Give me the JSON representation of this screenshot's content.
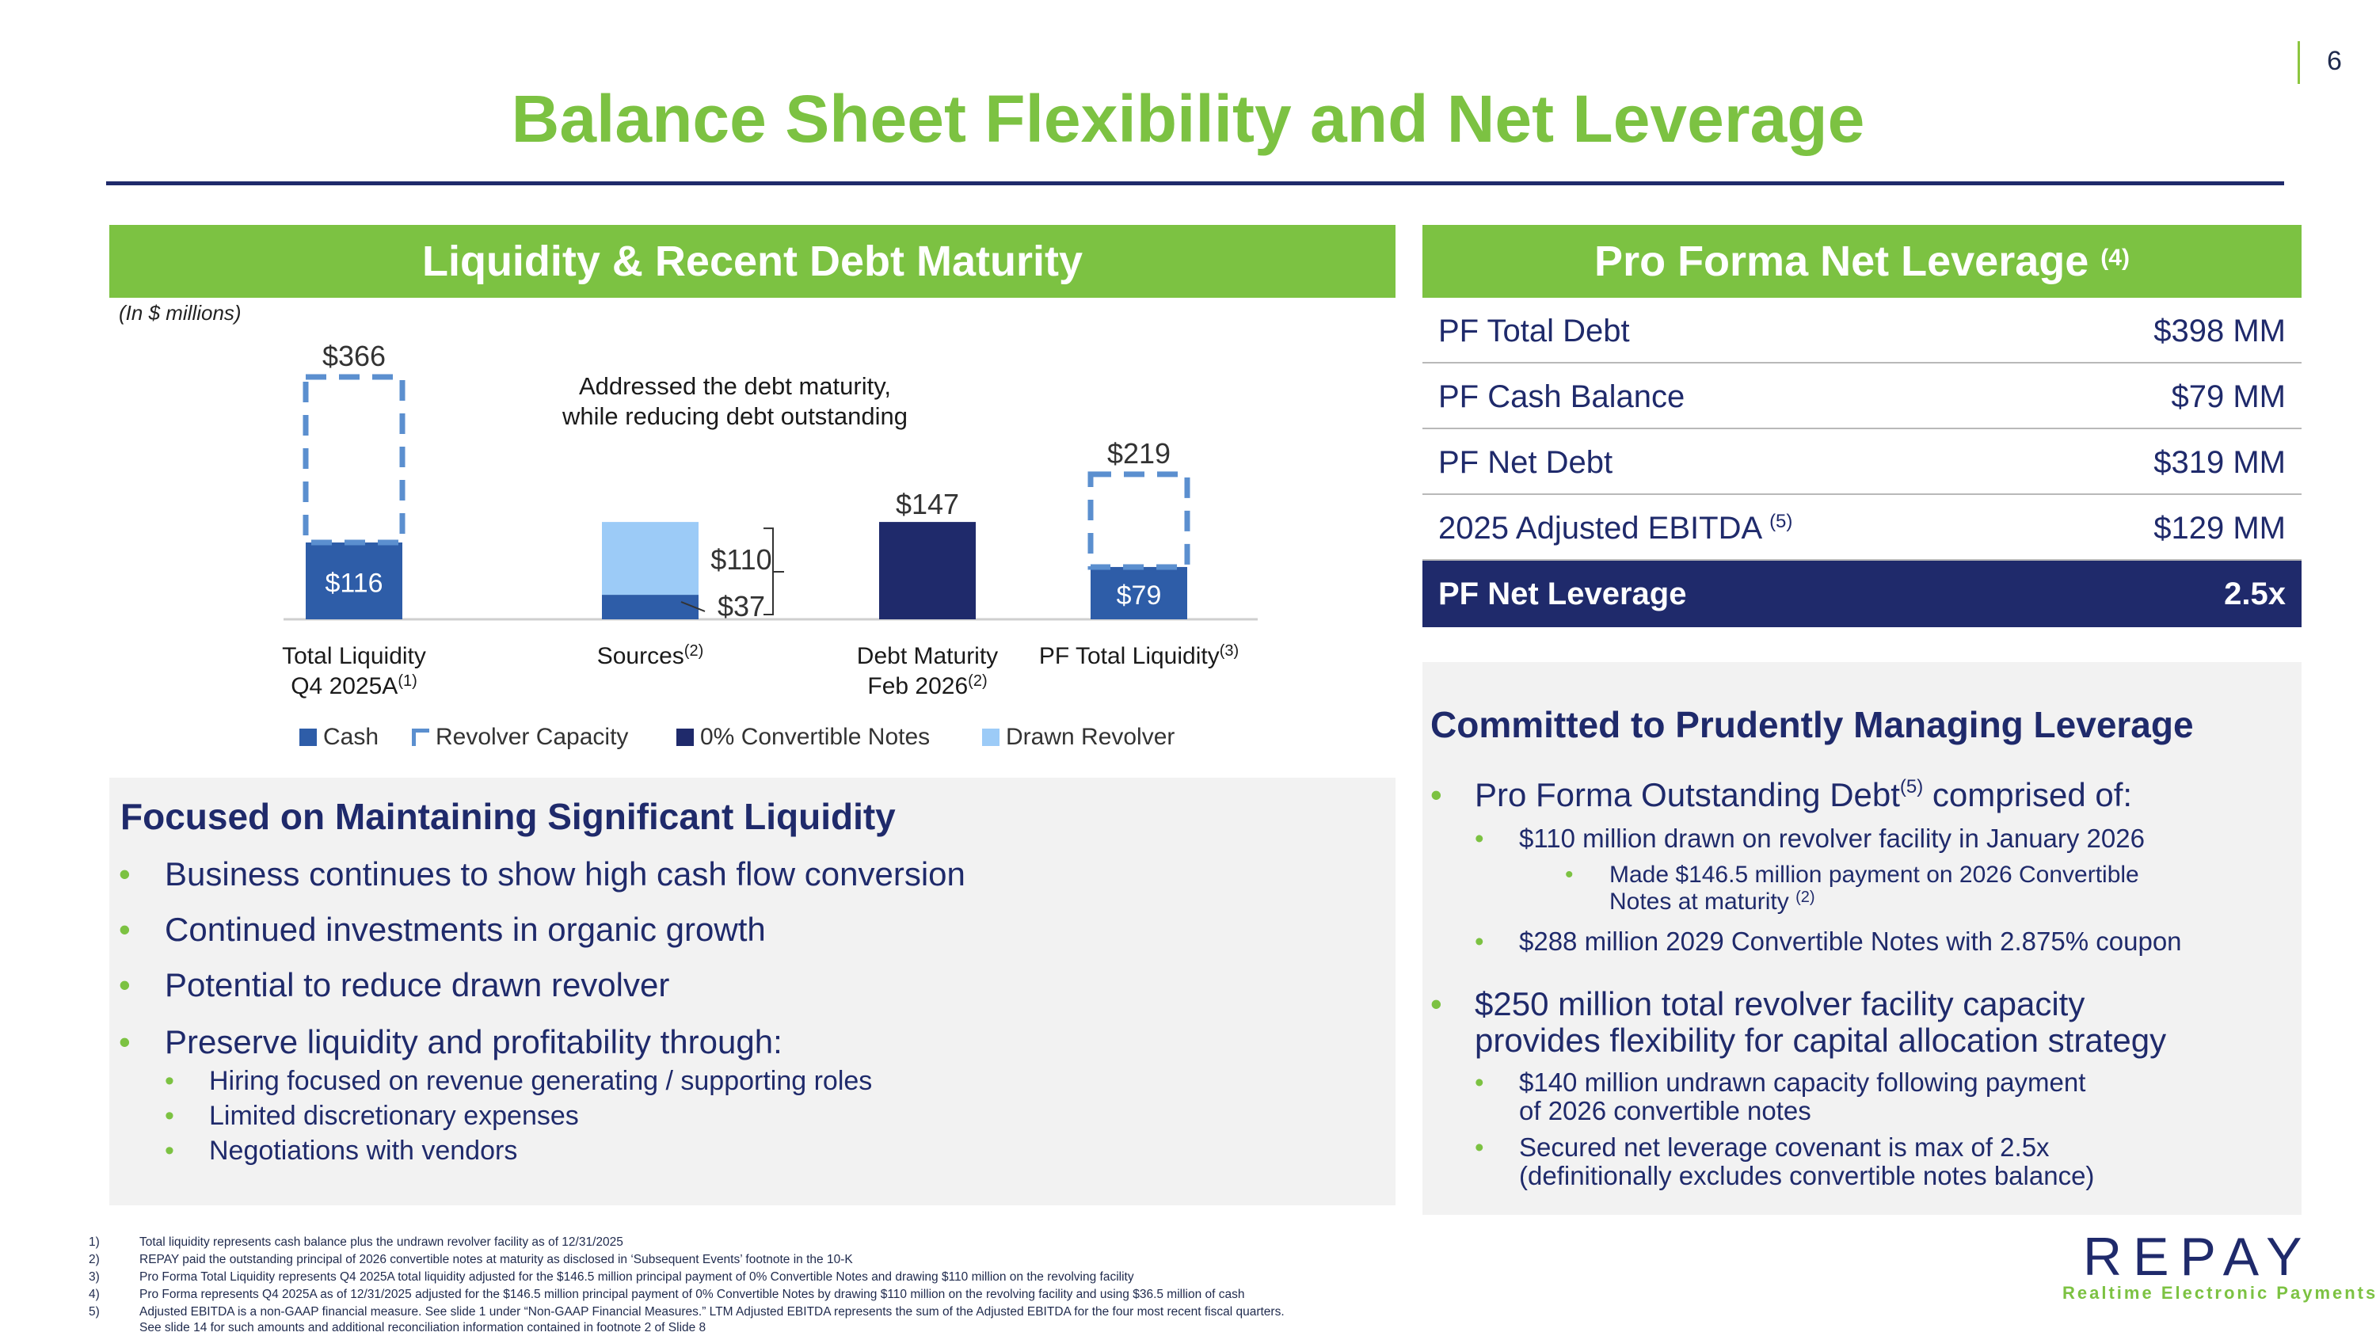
{
  "page_number": "6",
  "title": "Balance Sheet Flexibility and Net Leverage",
  "left_panel": {
    "header": "Liquidity & Recent Debt Maturity",
    "units_note": "(In $ millions)",
    "chart_annotation_line1": "Addressed the debt maturity,",
    "chart_annotation_line2": "while reducing debt outstanding"
  },
  "chart_data": {
    "type": "bar",
    "categories": [
      "Total Liquidity Q4 2025A",
      "Sources",
      "Debt Maturity Feb 2026",
      "PF Total Liquidity"
    ],
    "category_labels": [
      {
        "line1": "Total Liquidity",
        "line2": "Q4 2025A",
        "footnote": "(1)"
      },
      {
        "line1": "Sources",
        "line2": "",
        "footnote": "(2)"
      },
      {
        "line1": "Debt Maturity",
        "line2": "Feb 2026",
        "footnote": "(2)"
      },
      {
        "line1": "PF Total Liquidity",
        "line2": "",
        "footnote": "(3)"
      }
    ],
    "series": [
      {
        "name": "Cash",
        "values": [
          116,
          37,
          null,
          79
        ],
        "color": "#2e5da8"
      },
      {
        "name": "Revolver Capacity",
        "values": [
          250,
          null,
          null,
          140
        ],
        "color": "#5b8fcf"
      },
      {
        "name": "0% Convertible Notes",
        "values": [
          null,
          null,
          147,
          null
        ],
        "color": "#1f2a6b"
      },
      {
        "name": "Drawn Revolver",
        "values": [
          null,
          110,
          null,
          null
        ],
        "color": "#9ccbf7"
      }
    ],
    "data_labels": {
      "total_liquidity_total": "$366",
      "total_liquidity_cash": "$116",
      "sources_revolver": "$110",
      "sources_cash": "$37",
      "debt_maturity": "$147",
      "pf_total": "$219",
      "pf_cash": "$79"
    },
    "ylim": [
      0,
      366
    ],
    "legend_position": "bottom",
    "grid": false
  },
  "focus_box": {
    "title": "Focused on Maintaining Significant Liquidity",
    "bullets": [
      "Business continues to show high cash flow conversion",
      "Continued investments in organic growth",
      "Potential to reduce drawn revolver",
      "Preserve liquidity and profitability through:"
    ],
    "sub_bullets": [
      "Hiring focused on revenue generating / supporting roles",
      "Limited discretionary expenses",
      "Negotiations with vendors"
    ]
  },
  "right_panel": {
    "header": "Pro Forma Net Leverage",
    "header_footnote": "(4)",
    "table": [
      {
        "label": "PF Total Debt",
        "footnote": "",
        "value": "$398 MM"
      },
      {
        "label": "PF Cash Balance",
        "footnote": "",
        "value": "$79 MM"
      },
      {
        "label": "PF Net Debt",
        "footnote": "",
        "value": "$319 MM"
      },
      {
        "label": "2025 Adjusted EBITDA",
        "footnote": "(5)",
        "value": "$129 MM"
      },
      {
        "label": "PF Net Leverage",
        "footnote": "",
        "value": "2.5x"
      }
    ]
  },
  "committed_box": {
    "title": "Committed to Prudently Managing Leverage",
    "b1_pre": "Pro Forma Outstanding Debt",
    "b1_sup": "(5)",
    "b1_post": " comprised of:",
    "b1_sub1": "$110 million drawn on revolver facility in January 2026",
    "b1_subsub_line1": "Made $146.5 million payment on 2026 Convertible",
    "b1_subsub_line2": "Notes at maturity",
    "b1_subsub_sup": "(2)",
    "b1_sub2": "$288 million 2029 Convertible Notes with 2.875% coupon",
    "b2_line1": "$250 million total revolver facility capacity",
    "b2_line2": "provides flexibility for capital allocation strategy",
    "b2_sub1_line1": "$140 million undrawn capacity following payment",
    "b2_sub1_line2": "of 2026 convertible notes",
    "b2_sub2_line1": "Secured net leverage covenant is max of 2.5x",
    "b2_sub2_line2": "(definitionally excludes convertible notes balance)"
  },
  "footnotes": [
    {
      "n": "1)",
      "text": "Total liquidity represents cash balance plus the undrawn revolver facility as of 12/31/2025"
    },
    {
      "n": "2)",
      "text": "REPAY paid the outstanding principal of 2026 convertible notes at maturity as disclosed in ‘Subsequent Events’ footnote in the 10-K"
    },
    {
      "n": "3)",
      "text": "Pro Forma Total Liquidity represents Q4 2025A total liquidity adjusted for the $146.5 million principal payment of 0% Convertible Notes and drawing $110 million on the revolving facility"
    },
    {
      "n": "4)",
      "text": "Pro Forma represents Q4 2025A as of 12/31/2025 adjusted for the $146.5 million principal payment of 0% Convertible Notes by drawing $110 million on the revolving facility and using $36.5 million of cash"
    },
    {
      "n": "5)",
      "text": "Adjusted EBITDA is a non-GAAP financial measure.  See slide 1 under “Non-GAAP Financial Measures.”  LTM Adjusted EBITDA represents the sum of the Adjusted EBITDA for the four most recent fiscal quarters."
    },
    {
      "n": "",
      "text": "See slide 14 for such amounts and additional reconciliation information contained in footnote 2 of Slide 8"
    }
  ],
  "logo": {
    "wordmark": "REPAY",
    "tagline": "Realtime Electronic Payments"
  }
}
